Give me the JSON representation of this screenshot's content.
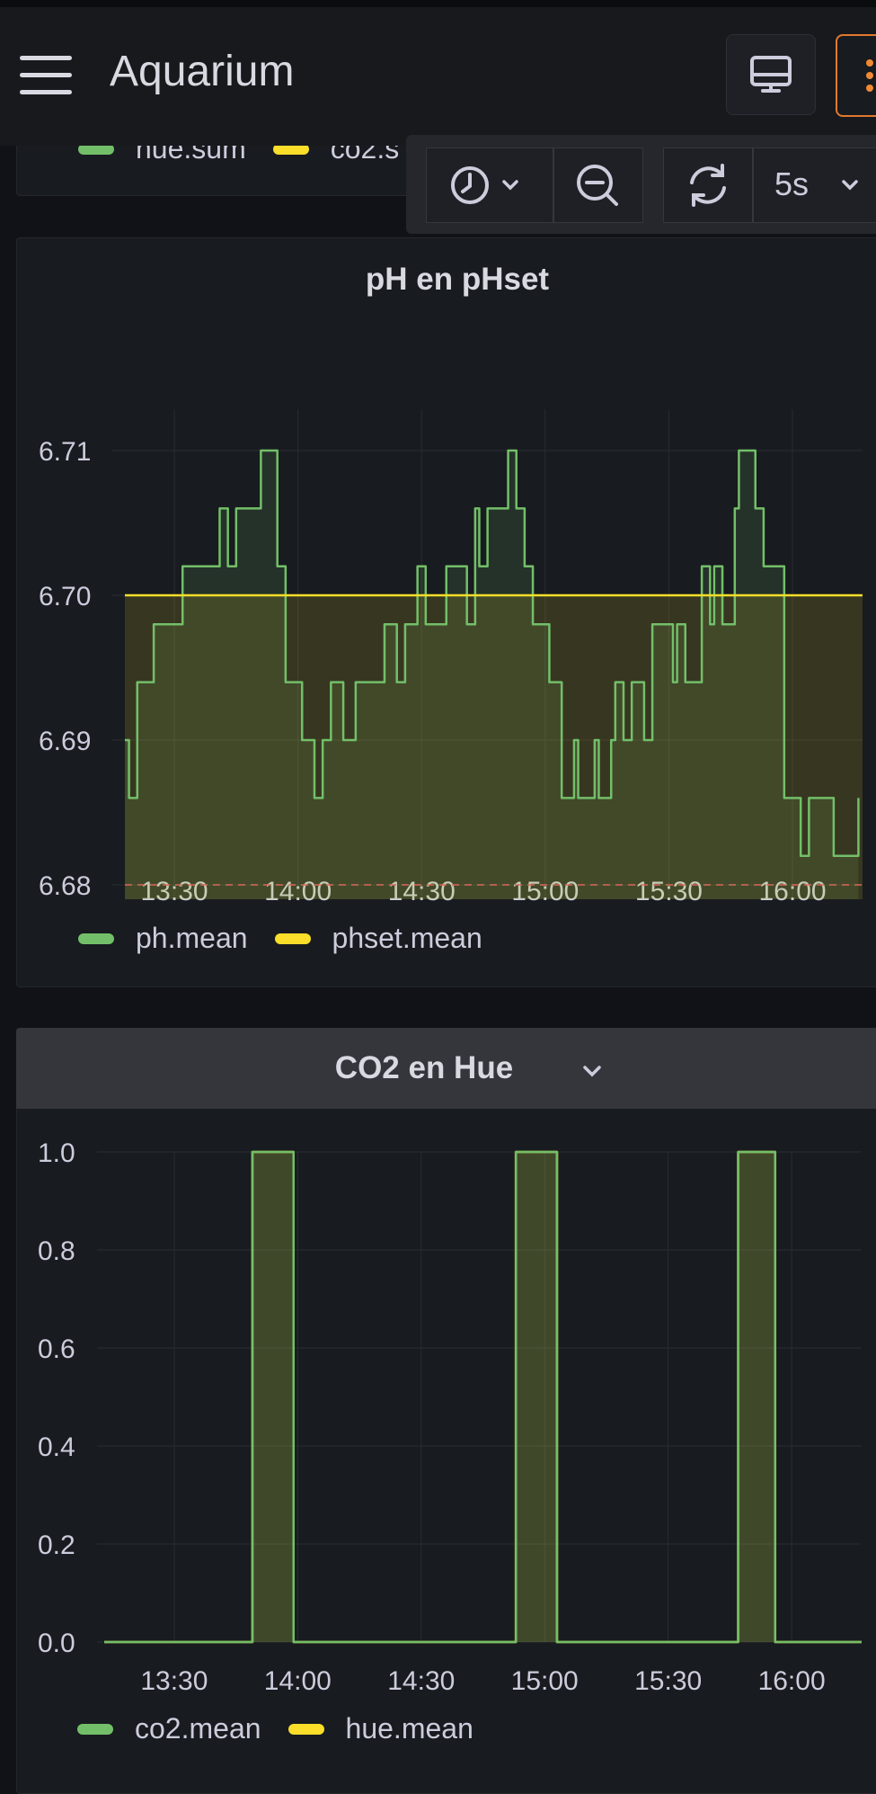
{
  "header": {
    "title": "Aquarium",
    "refresh_interval": "5s"
  },
  "icons": {
    "menu": "hamburger-icon",
    "tv": "tv-monitor-icon",
    "more": "more-vertical-icon",
    "time": "clock-icon",
    "zoom": "zoom-out-icon",
    "refresh": "refresh-icon",
    "chevron": "chevron-down-icon"
  },
  "colors": {
    "green": "#73bf69",
    "yellow": "#fade2a",
    "orange": "#e2792e",
    "threshold": "#d8695a"
  },
  "top_legend": {
    "items": [
      "hue.sum",
      "co2.s"
    ]
  },
  "chart_data": [
    {
      "type": "line",
      "title": "pH en pHset",
      "x_ticks": [
        "13:30",
        "14:00",
        "14:30",
        "15:00",
        "15:30",
        "16:00"
      ],
      "y_ticks": [
        "6.68",
        "6.69",
        "6.70",
        "6.71"
      ],
      "ylim": [
        6.68,
        6.71
      ],
      "series": [
        {
          "name": "ph.mean",
          "color": "#73bf69",
          "points": [
            [
              "13:18",
              6.69
            ],
            [
              "13:19",
              6.686
            ],
            [
              "13:21",
              6.694
            ],
            [
              "13:25",
              6.698
            ],
            [
              "13:32",
              6.702
            ],
            [
              "13:41",
              6.706
            ],
            [
              "13:43",
              6.702
            ],
            [
              "13:45",
              6.706
            ],
            [
              "13:51",
              6.71
            ],
            [
              "13:55",
              6.702
            ],
            [
              "13:57",
              6.694
            ],
            [
              "14:01",
              6.69
            ],
            [
              "14:04",
              6.686
            ],
            [
              "14:06",
              6.69
            ],
            [
              "14:08",
              6.694
            ],
            [
              "14:11",
              6.69
            ],
            [
              "14:14",
              6.694
            ],
            [
              "14:21",
              6.698
            ],
            [
              "14:24",
              6.694
            ],
            [
              "14:26",
              6.698
            ],
            [
              "14:29",
              6.702
            ],
            [
              "14:31",
              6.698
            ],
            [
              "14:36",
              6.702
            ],
            [
              "14:41",
              6.698
            ],
            [
              "14:43",
              6.706
            ],
            [
              "14:44",
              6.702
            ],
            [
              "14:46",
              6.706
            ],
            [
              "14:51",
              6.71
            ],
            [
              "14:53",
              6.706
            ],
            [
              "14:55",
              6.702
            ],
            [
              "14:57",
              6.698
            ],
            [
              "15:01",
              6.694
            ],
            [
              "15:04",
              6.686
            ],
            [
              "15:07",
              6.69
            ],
            [
              "15:08",
              6.686
            ],
            [
              "15:12",
              6.69
            ],
            [
              "15:13",
              6.686
            ],
            [
              "15:16",
              6.69
            ],
            [
              "15:17",
              6.694
            ],
            [
              "15:19",
              6.69
            ],
            [
              "15:21",
              6.694
            ],
            [
              "15:24",
              6.69
            ],
            [
              "15:26",
              6.698
            ],
            [
              "15:31",
              6.694
            ],
            [
              "15:32",
              6.698
            ],
            [
              "15:34",
              6.694
            ],
            [
              "15:38",
              6.702
            ],
            [
              "15:40",
              6.698
            ],
            [
              "15:41",
              6.702
            ],
            [
              "15:43",
              6.698
            ],
            [
              "15:46",
              6.706
            ],
            [
              "15:47",
              6.71
            ],
            [
              "15:51",
              6.706
            ],
            [
              "15:53",
              6.702
            ],
            [
              "15:58",
              6.686
            ],
            [
              "16:02",
              6.682
            ],
            [
              "16:04",
              6.686
            ],
            [
              "16:10",
              6.682
            ],
            [
              "16:16",
              6.686
            ]
          ]
        },
        {
          "name": "phset.mean",
          "color": "#fade2a",
          "points": [
            [
              "13:18",
              6.7
            ],
            [
              "16:17",
              6.7
            ]
          ]
        }
      ],
      "threshold": {
        "value": 6.68,
        "style": "dashed"
      },
      "legend": [
        "ph.mean",
        "phset.mean"
      ],
      "legend_placement": "bottom-left"
    },
    {
      "type": "line",
      "title": "CO2 en Hue",
      "x_ticks": [
        "13:30",
        "14:00",
        "14:30",
        "15:00",
        "15:30",
        "16:00"
      ],
      "y_ticks": [
        "0.0",
        "0.2",
        "0.4",
        "0.6",
        "0.8",
        "1.0"
      ],
      "ylim": [
        0,
        1
      ],
      "series": [
        {
          "name": "hue.mean",
          "color": "#fade2a",
          "points": [
            [
              "13:13",
              0
            ],
            [
              "13:48",
              0
            ],
            [
              "13:49",
              1
            ],
            [
              "13:58",
              1
            ],
            [
              "13:59",
              0
            ],
            [
              "14:52",
              0
            ],
            [
              "14:53",
              1
            ],
            [
              "15:02",
              1
            ],
            [
              "15:03",
              0
            ],
            [
              "15:46",
              0
            ],
            [
              "15:47",
              1
            ],
            [
              "15:55",
              1
            ],
            [
              "15:56",
              0
            ],
            [
              "16:17",
              0
            ]
          ]
        },
        {
          "name": "co2.mean",
          "color": "#73bf69",
          "points": [
            [
              "13:13",
              0
            ],
            [
              "13:48",
              0
            ],
            [
              "13:49",
              1
            ],
            [
              "13:58",
              1
            ],
            [
              "13:59",
              0
            ],
            [
              "14:52",
              0
            ],
            [
              "14:53",
              1
            ],
            [
              "15:02",
              1
            ],
            [
              "15:03",
              0
            ],
            [
              "15:46",
              0
            ],
            [
              "15:47",
              1
            ],
            [
              "15:55",
              1
            ],
            [
              "15:56",
              0
            ],
            [
              "16:17",
              0
            ]
          ]
        }
      ],
      "legend": [
        "co2.mean",
        "hue.mean"
      ],
      "legend_placement": "bottom-left"
    }
  ]
}
